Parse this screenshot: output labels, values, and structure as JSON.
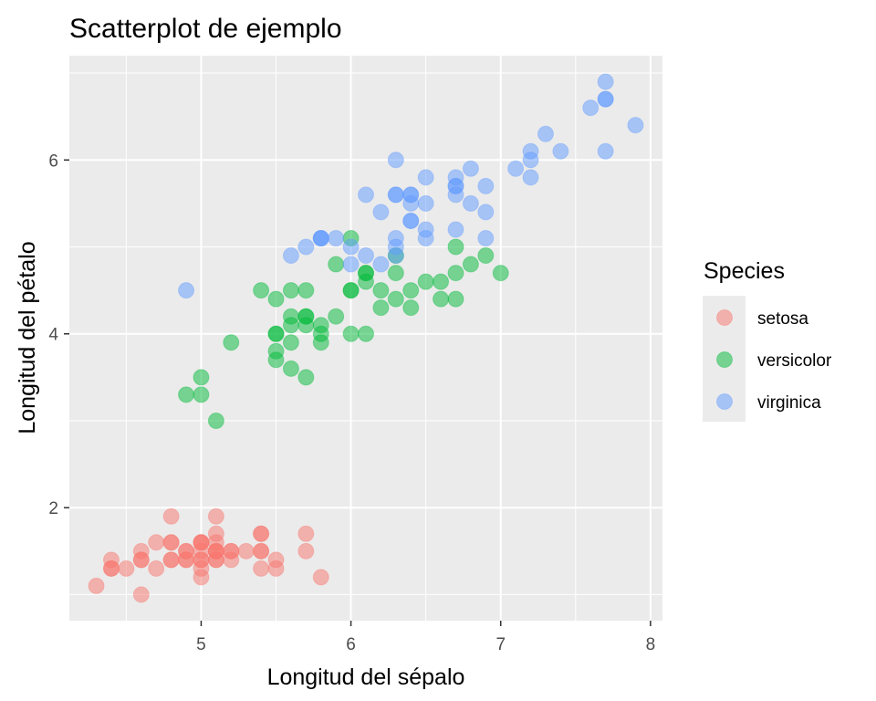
{
  "chart_data": {
    "type": "scatter",
    "title": "Scatterplot de ejemplo",
    "xlabel": "Longitud del sépalo",
    "ylabel": "Longitud del pétalo",
    "xlim": [
      4.12,
      8.08
    ],
    "ylim": [
      0.7,
      7.2
    ],
    "x_ticks": [
      5,
      6,
      7,
      8
    ],
    "x_minor": [
      4.5,
      5.5,
      6.5,
      7.5
    ],
    "y_ticks": [
      2,
      4,
      6
    ],
    "y_minor": [
      1,
      3,
      5,
      7
    ],
    "grid": true,
    "panel_background": "#ebebeb",
    "grid_color": "#ffffff",
    "point_alpha": 0.5,
    "legend": {
      "title": "Species",
      "position": "right",
      "items": [
        "setosa",
        "versicolor",
        "virginica"
      ]
    },
    "series": [
      {
        "name": "setosa",
        "color": "#F8766D",
        "points": [
          [
            5.1,
            1.4
          ],
          [
            4.9,
            1.4
          ],
          [
            4.7,
            1.3
          ],
          [
            4.6,
            1.5
          ],
          [
            5.0,
            1.4
          ],
          [
            5.4,
            1.7
          ],
          [
            4.6,
            1.4
          ],
          [
            5.0,
            1.5
          ],
          [
            4.4,
            1.4
          ],
          [
            4.9,
            1.5
          ],
          [
            5.4,
            1.5
          ],
          [
            4.8,
            1.6
          ],
          [
            4.8,
            1.4
          ],
          [
            4.3,
            1.1
          ],
          [
            5.8,
            1.2
          ],
          [
            5.7,
            1.5
          ],
          [
            5.4,
            1.3
          ],
          [
            5.1,
            1.4
          ],
          [
            5.7,
            1.7
          ],
          [
            5.1,
            1.5
          ],
          [
            5.4,
            1.7
          ],
          [
            5.1,
            1.5
          ],
          [
            4.6,
            1.0
          ],
          [
            5.1,
            1.7
          ],
          [
            4.8,
            1.9
          ],
          [
            5.0,
            1.6
          ],
          [
            5.0,
            1.6
          ],
          [
            5.2,
            1.5
          ],
          [
            5.2,
            1.4
          ],
          [
            4.7,
            1.6
          ],
          [
            4.8,
            1.6
          ],
          [
            5.4,
            1.5
          ],
          [
            5.2,
            1.5
          ],
          [
            5.5,
            1.4
          ],
          [
            4.9,
            1.5
          ],
          [
            5.0,
            1.2
          ],
          [
            5.5,
            1.3
          ],
          [
            4.9,
            1.4
          ],
          [
            4.4,
            1.3
          ],
          [
            5.1,
            1.5
          ],
          [
            5.0,
            1.3
          ],
          [
            4.5,
            1.3
          ],
          [
            4.4,
            1.3
          ],
          [
            5.0,
            1.6
          ],
          [
            5.1,
            1.9
          ],
          [
            4.8,
            1.4
          ],
          [
            5.1,
            1.6
          ],
          [
            4.6,
            1.4
          ],
          [
            5.3,
            1.5
          ],
          [
            5.0,
            1.4
          ]
        ]
      },
      {
        "name": "versicolor",
        "color": "#00BA38",
        "points": [
          [
            7.0,
            4.7
          ],
          [
            6.4,
            4.5
          ],
          [
            6.9,
            4.9
          ],
          [
            5.5,
            4.0
          ],
          [
            6.5,
            4.6
          ],
          [
            5.7,
            4.5
          ],
          [
            6.3,
            4.7
          ],
          [
            4.9,
            3.3
          ],
          [
            6.6,
            4.6
          ],
          [
            5.2,
            3.9
          ],
          [
            5.0,
            3.5
          ],
          [
            5.9,
            4.2
          ],
          [
            6.0,
            4.0
          ],
          [
            6.1,
            4.7
          ],
          [
            5.6,
            3.6
          ],
          [
            6.7,
            4.4
          ],
          [
            5.6,
            4.5
          ],
          [
            5.8,
            4.1
          ],
          [
            6.2,
            4.5
          ],
          [
            5.6,
            3.9
          ],
          [
            5.9,
            4.8
          ],
          [
            6.1,
            4.0
          ],
          [
            6.3,
            4.9
          ],
          [
            6.1,
            4.7
          ],
          [
            6.4,
            4.3
          ],
          [
            6.6,
            4.4
          ],
          [
            6.8,
            4.8
          ],
          [
            6.7,
            5.0
          ],
          [
            6.0,
            4.5
          ],
          [
            5.7,
            3.5
          ],
          [
            5.5,
            3.8
          ],
          [
            5.5,
            3.7
          ],
          [
            5.8,
            3.9
          ],
          [
            6.0,
            5.1
          ],
          [
            5.4,
            4.5
          ],
          [
            6.0,
            4.5
          ],
          [
            6.7,
            4.7
          ],
          [
            6.3,
            4.4
          ],
          [
            5.6,
            4.1
          ],
          [
            5.5,
            4.0
          ],
          [
            5.5,
            4.4
          ],
          [
            6.1,
            4.6
          ],
          [
            5.8,
            4.0
          ],
          [
            5.0,
            3.3
          ],
          [
            5.6,
            4.2
          ],
          [
            5.7,
            4.2
          ],
          [
            5.7,
            4.2
          ],
          [
            6.2,
            4.3
          ],
          [
            5.1,
            3.0
          ],
          [
            5.7,
            4.1
          ]
        ]
      },
      {
        "name": "virginica",
        "color": "#619CFF",
        "points": [
          [
            6.3,
            6.0
          ],
          [
            5.8,
            5.1
          ],
          [
            7.1,
            5.9
          ],
          [
            6.3,
            5.6
          ],
          [
            6.5,
            5.8
          ],
          [
            7.6,
            6.6
          ],
          [
            4.9,
            4.5
          ],
          [
            7.3,
            6.3
          ],
          [
            6.7,
            5.8
          ],
          [
            7.2,
            6.1
          ],
          [
            6.5,
            5.1
          ],
          [
            6.4,
            5.3
          ],
          [
            6.8,
            5.5
          ],
          [
            5.7,
            5.0
          ],
          [
            5.8,
            5.1
          ],
          [
            6.4,
            5.3
          ],
          [
            6.5,
            5.5
          ],
          [
            7.7,
            6.7
          ],
          [
            7.7,
            6.9
          ],
          [
            6.0,
            5.0
          ],
          [
            6.9,
            5.7
          ],
          [
            5.6,
            4.9
          ],
          [
            7.7,
            6.7
          ],
          [
            6.3,
            4.9
          ],
          [
            6.7,
            5.7
          ],
          [
            7.2,
            6.0
          ],
          [
            6.2,
            4.8
          ],
          [
            6.1,
            4.9
          ],
          [
            6.4,
            5.6
          ],
          [
            7.2,
            5.8
          ],
          [
            7.4,
            6.1
          ],
          [
            7.9,
            6.4
          ],
          [
            6.4,
            5.6
          ],
          [
            6.3,
            5.1
          ],
          [
            6.1,
            5.6
          ],
          [
            7.7,
            6.1
          ],
          [
            6.3,
            5.6
          ],
          [
            6.4,
            5.5
          ],
          [
            6.0,
            4.8
          ],
          [
            6.9,
            5.4
          ],
          [
            6.7,
            5.6
          ],
          [
            6.9,
            5.1
          ],
          [
            5.8,
            5.1
          ],
          [
            6.8,
            5.9
          ],
          [
            6.7,
            5.7
          ],
          [
            6.7,
            5.2
          ],
          [
            6.3,
            5.0
          ],
          [
            6.5,
            5.2
          ],
          [
            6.2,
            5.4
          ],
          [
            5.9,
            5.1
          ]
        ]
      }
    ]
  }
}
